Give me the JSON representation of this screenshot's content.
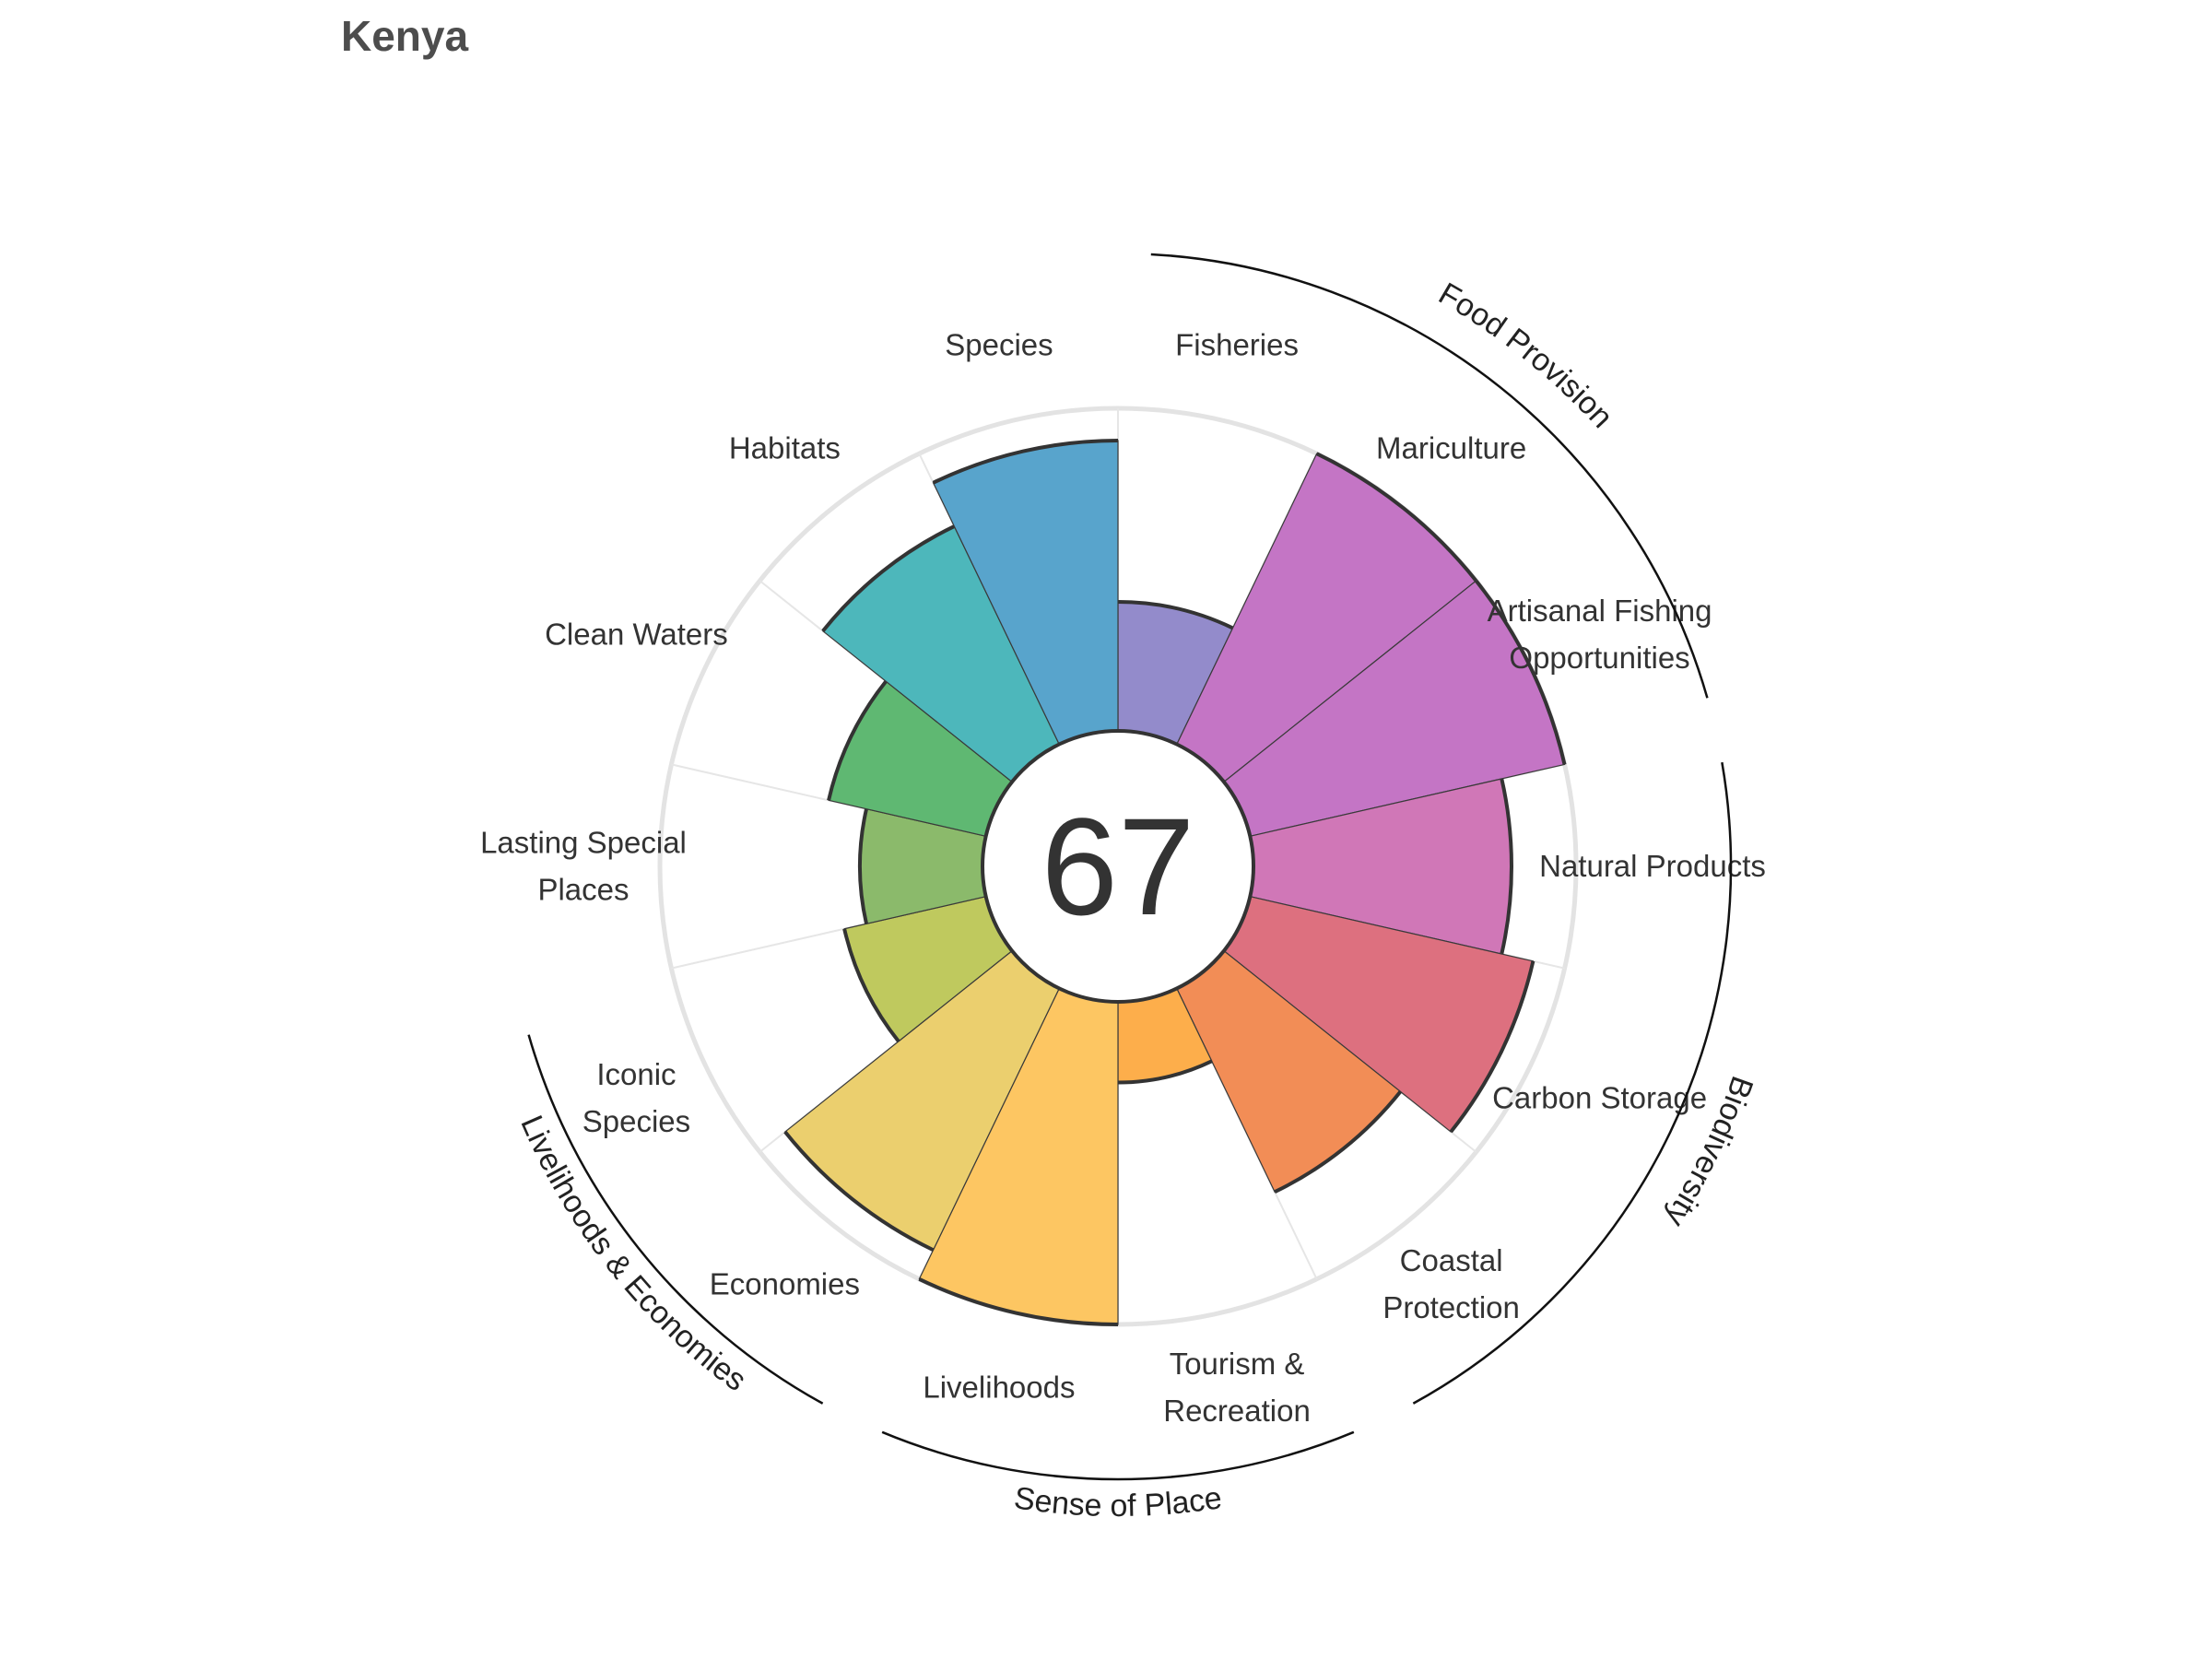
{
  "title": "Kenya",
  "chart_data": {
    "type": "polar-bar",
    "title": "Kenya",
    "center_score": "67",
    "rlim": [
      0,
      100
    ],
    "grid": true,
    "categories": [
      {
        "label": [
          "Fisheries"
        ],
        "value": 40,
        "color": "#938BCB"
      },
      {
        "label": [
          "Mariculture"
        ],
        "value": 100,
        "color": "#C475C5"
      },
      {
        "label": [
          "Artisanal Fishing",
          "Opportunities"
        ],
        "value": 100,
        "color": "#C475C5"
      },
      {
        "label": [
          "Natural Products"
        ],
        "value": 80,
        "color": "#D077B7"
      },
      {
        "label": [
          "Carbon Storage"
        ],
        "value": 90,
        "color": "#DD707F"
      },
      {
        "label": [
          "Coastal",
          "Protection"
        ],
        "value": 70,
        "color": "#F28D56"
      },
      {
        "label": [
          "Tourism &",
          "Recreation"
        ],
        "value": 25,
        "color": "#FDAE4B"
      },
      {
        "label": [
          "Livelihoods"
        ],
        "value": 100,
        "color": "#FDC662"
      },
      {
        "label": [
          "Economies"
        ],
        "value": 90,
        "color": "#EBCF6E"
      },
      {
        "label": [
          "Iconic",
          "Species"
        ],
        "value": 45,
        "color": "#BFC95E"
      },
      {
        "label": [
          "Lasting Special",
          "Places"
        ],
        "value": 38,
        "color": "#8BBA6B"
      },
      {
        "label": [
          "Clean Waters"
        ],
        "value": 50,
        "color": "#5FB872"
      },
      {
        "label": [
          "Habitats"
        ],
        "value": 75,
        "color": "#4DB7BB"
      },
      {
        "label": [
          "Species"
        ],
        "value": 90,
        "color": "#58A4CC"
      }
    ],
    "groups": [
      {
        "name": "Food Provision"
      },
      {
        "name": "Biodiversity"
      },
      {
        "name": "Sense of Place"
      },
      {
        "name": "Livelihoods & Economies"
      }
    ]
  }
}
